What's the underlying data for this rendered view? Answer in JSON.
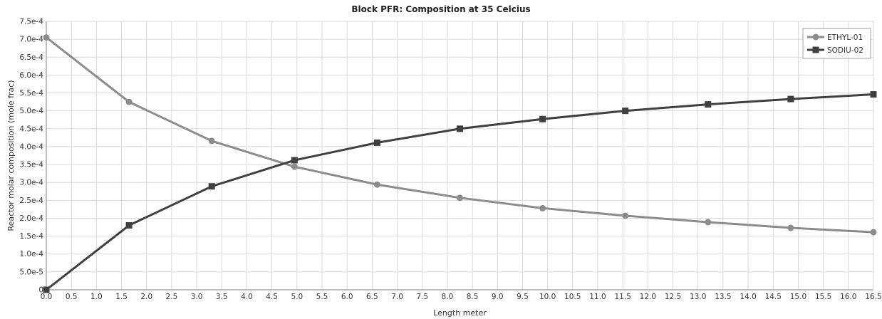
{
  "chart_data": {
    "type": "line",
    "title": "Block PFR: Composition at 35 Celcius",
    "xlabel": "Length meter",
    "ylabel": "Reactor molar composition (mole frac)",
    "xlim": [
      0,
      16.5
    ],
    "ylim": [
      0,
      0.00075
    ],
    "x_ticks": [
      "0.0",
      "0.5",
      "1.0",
      "1.5",
      "2.0",
      "2.5",
      "3.0",
      "3.5",
      "4.0",
      "4.5",
      "5.0",
      "5.5",
      "6.0",
      "6.5",
      "7.0",
      "7.5",
      "8.0",
      "8.5",
      "9.0",
      "9.5",
      "10.0",
      "10.5",
      "11.0",
      "11.5",
      "12.0",
      "12.5",
      "13.0",
      "13.5",
      "14.0",
      "14.5",
      "15.0",
      "15.5",
      "16.0",
      "16.5"
    ],
    "y_ticks": [
      "0",
      "5.0e-5",
      "1.0e-4",
      "1.5e-4",
      "2.0e-4",
      "2.5e-4",
      "3.0e-4",
      "3.5e-4",
      "4.0e-4",
      "4.5e-4",
      "5.0e-4",
      "5.5e-4",
      "6.0e-4",
      "6.5e-4",
      "7.0e-4",
      "7.5e-4"
    ],
    "grid": true,
    "legend_position": "top-right",
    "x": [
      0.0,
      1.65,
      3.3,
      4.95,
      6.6,
      8.25,
      9.9,
      11.55,
      13.2,
      14.85,
      16.5
    ],
    "series": [
      {
        "name": "ETHYL-01",
        "color": "#8c8c8c",
        "marker": "circle",
        "values": [
          0.000705,
          0.000525,
          0.000416,
          0.000344,
          0.000294,
          0.000257,
          0.000228,
          0.000207,
          0.000189,
          0.000173,
          0.000161
        ]
      },
      {
        "name": "SODIU-02",
        "color": "#404040",
        "marker": "square",
        "values": [
          0.0,
          0.00018,
          0.000289,
          0.000362,
          0.000411,
          0.00045,
          0.000477,
          0.0005,
          0.000518,
          0.000533,
          0.000546
        ]
      }
    ]
  }
}
